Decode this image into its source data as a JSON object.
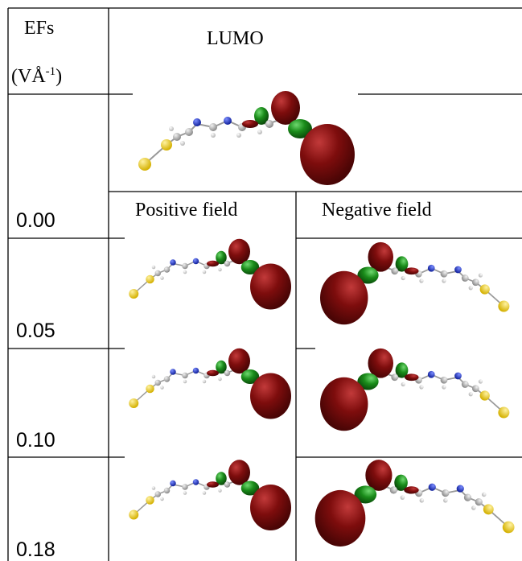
{
  "header": {
    "efs_label": "EFs",
    "unit_open": "(VÅ",
    "unit_exponent": "-1",
    "unit_close": ")",
    "lumo": "LUMO"
  },
  "columns": {
    "positive": "Positive field",
    "negative": "Negative field"
  },
  "rows": [
    "0.00",
    "0.05",
    "0.10",
    "0.18"
  ]
}
